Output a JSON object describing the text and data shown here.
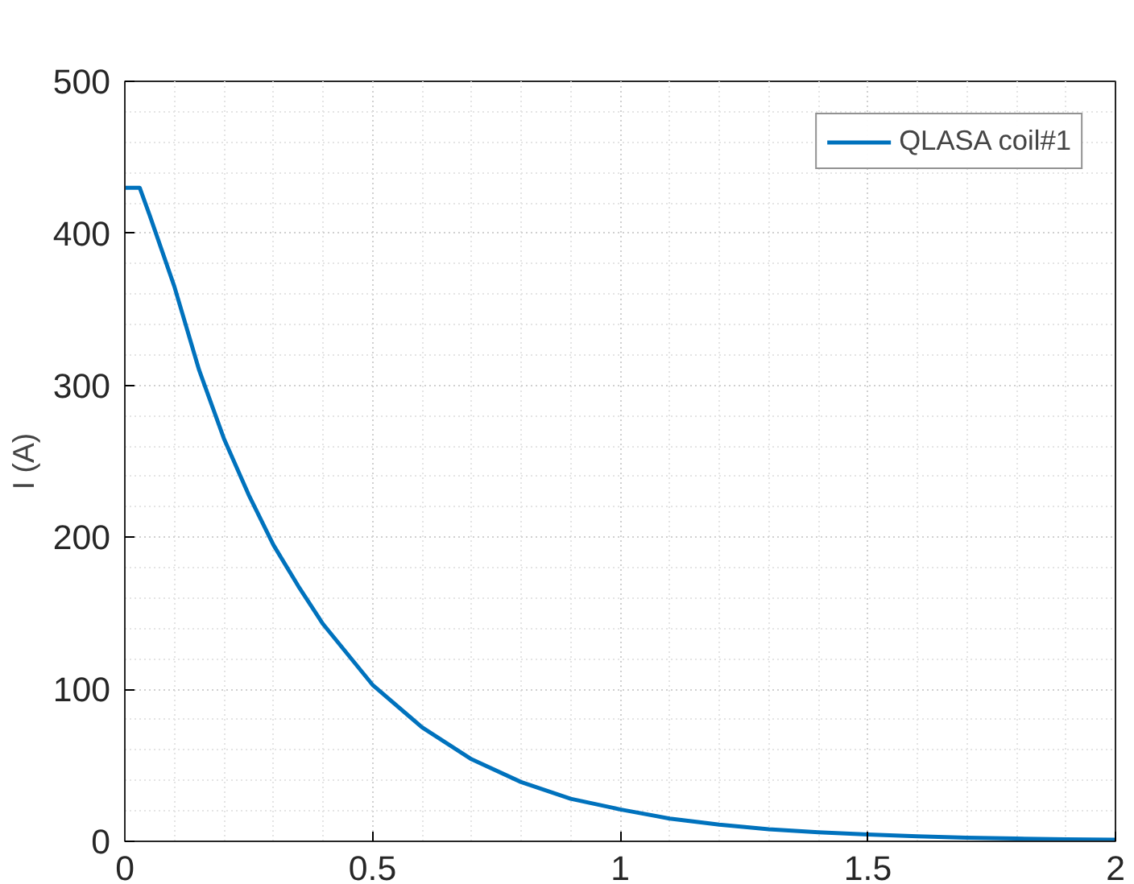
{
  "chart_data": {
    "type": "line",
    "ylabel": "I (A)",
    "x": [
      0,
      0.03,
      0.05,
      0.1,
      0.15,
      0.2,
      0.25,
      0.3,
      0.35,
      0.4,
      0.5,
      0.6,
      0.7,
      0.8,
      0.9,
      1.0,
      1.1,
      1.2,
      1.3,
      1.4,
      1.5,
      1.6,
      1.7,
      1.8,
      1.9,
      2.0
    ],
    "series": [
      {
        "name": "QLASA coil#1",
        "color": "#0072bd",
        "values": [
          430,
          430,
          412,
          365,
          310,
          265,
          228,
          195,
          168,
          143,
          103,
          75,
          54,
          39,
          28,
          21,
          15,
          11,
          8,
          6,
          4.5,
          3.3,
          2.4,
          1.8,
          1.3,
          1
        ]
      }
    ],
    "xlim": [
      0,
      2
    ],
    "xticks": [
      0,
      0.5,
      1,
      1.5,
      2
    ],
    "ylim": [
      0,
      500
    ],
    "yticks": [
      0,
      100,
      200,
      300,
      400,
      500
    ],
    "grid": true,
    "legend": "top right",
    "line_style": "solid",
    "marker": "none"
  }
}
